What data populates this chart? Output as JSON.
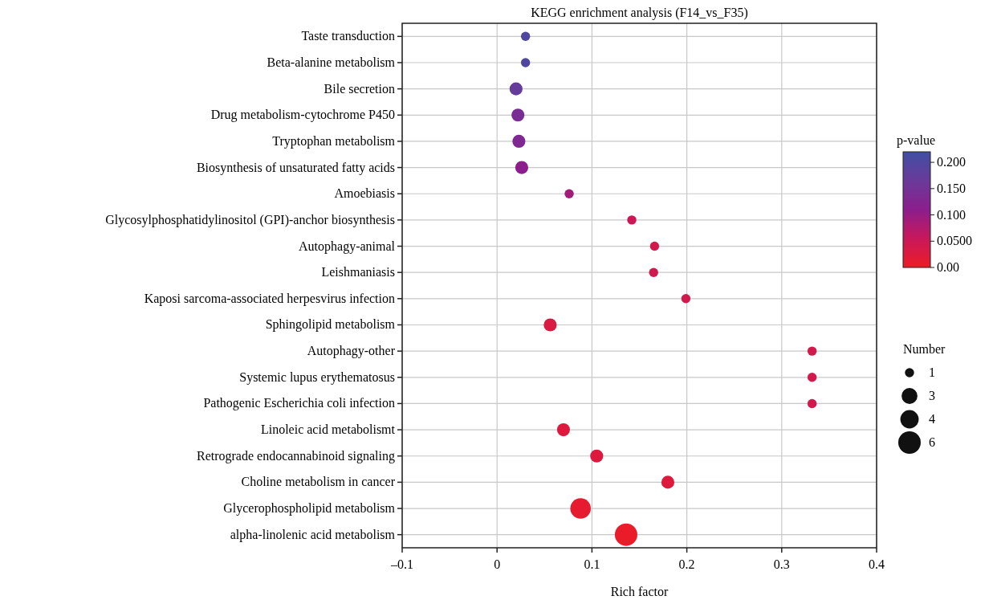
{
  "chart_data": {
    "type": "bubble",
    "orientation": "horizontal",
    "title": "KEGG enrichment analysis (F14_vs_F35)",
    "xlabel": "Rich factor",
    "legend_title": "Number",
    "clabel": "p-value",
    "categories": [
      "Taste transduction",
      "Beta-alanine metabolism",
      "Bile secretion",
      "Drug metabolism-cytochrome P450",
      "Tryptophan metabolism",
      "Biosynthesis of unsaturated fatty acids",
      "Amoebiasis",
      "Glycosylphosphatidylinositol (GPI)-anchor biosynthesis",
      "Autophagy-animal",
      "Leishmaniasis",
      "Kaposi sarcoma-associated herpesvirus infection",
      "Sphingolipid metabolism",
      "Autophagy-other",
      "Systemic lupus erythematosus",
      "Pathogenic Escherichia coli infection",
      "Linoleic acid metabolismt",
      "Retrograde endocannabinoid signaling",
      "Choline metabolism in cancer",
      "Glycerophospholipid metabolism",
      "alpha-linolenic acid metabolism"
    ],
    "values": [
      0.03,
      0.03,
      0.02,
      0.022,
      0.023,
      0.026,
      0.076,
      0.142,
      0.166,
      0.165,
      0.199,
      0.056,
      0.332,
      0.332,
      0.332,
      0.07,
      0.105,
      0.18,
      0.088,
      0.136
    ],
    "sizes": [
      1,
      1,
      2,
      2,
      2,
      2,
      1,
      1,
      1,
      1,
      1,
      2,
      1,
      1,
      1,
      2,
      2,
      2,
      5,
      6
    ],
    "size_legend": [
      1,
      3,
      4,
      6
    ],
    "cvalues": [
      0.2,
      0.2,
      0.17,
      0.14,
      0.13,
      0.11,
      0.09,
      0.05,
      0.04,
      0.045,
      0.04,
      0.03,
      0.04,
      0.04,
      0.04,
      0.025,
      0.025,
      0.025,
      0.01,
      0.005
    ],
    "clim": [
      0,
      0.22
    ],
    "cticks": [
      {
        "value": 0,
        "label": "0.00"
      },
      {
        "value": 0.05,
        "label": "0.0500"
      },
      {
        "value": 0.1,
        "label": "0.100"
      },
      {
        "value": 0.15,
        "label": "0.150"
      },
      {
        "value": 0.2,
        "label": "0.200"
      }
    ],
    "xlim": [
      -0.1,
      0.4
    ],
    "xticks": [
      {
        "value": -0.1,
        "label": "–0.1"
      },
      0,
      0.1,
      0.2,
      0.3,
      0.4
    ],
    "grid": true
  }
}
